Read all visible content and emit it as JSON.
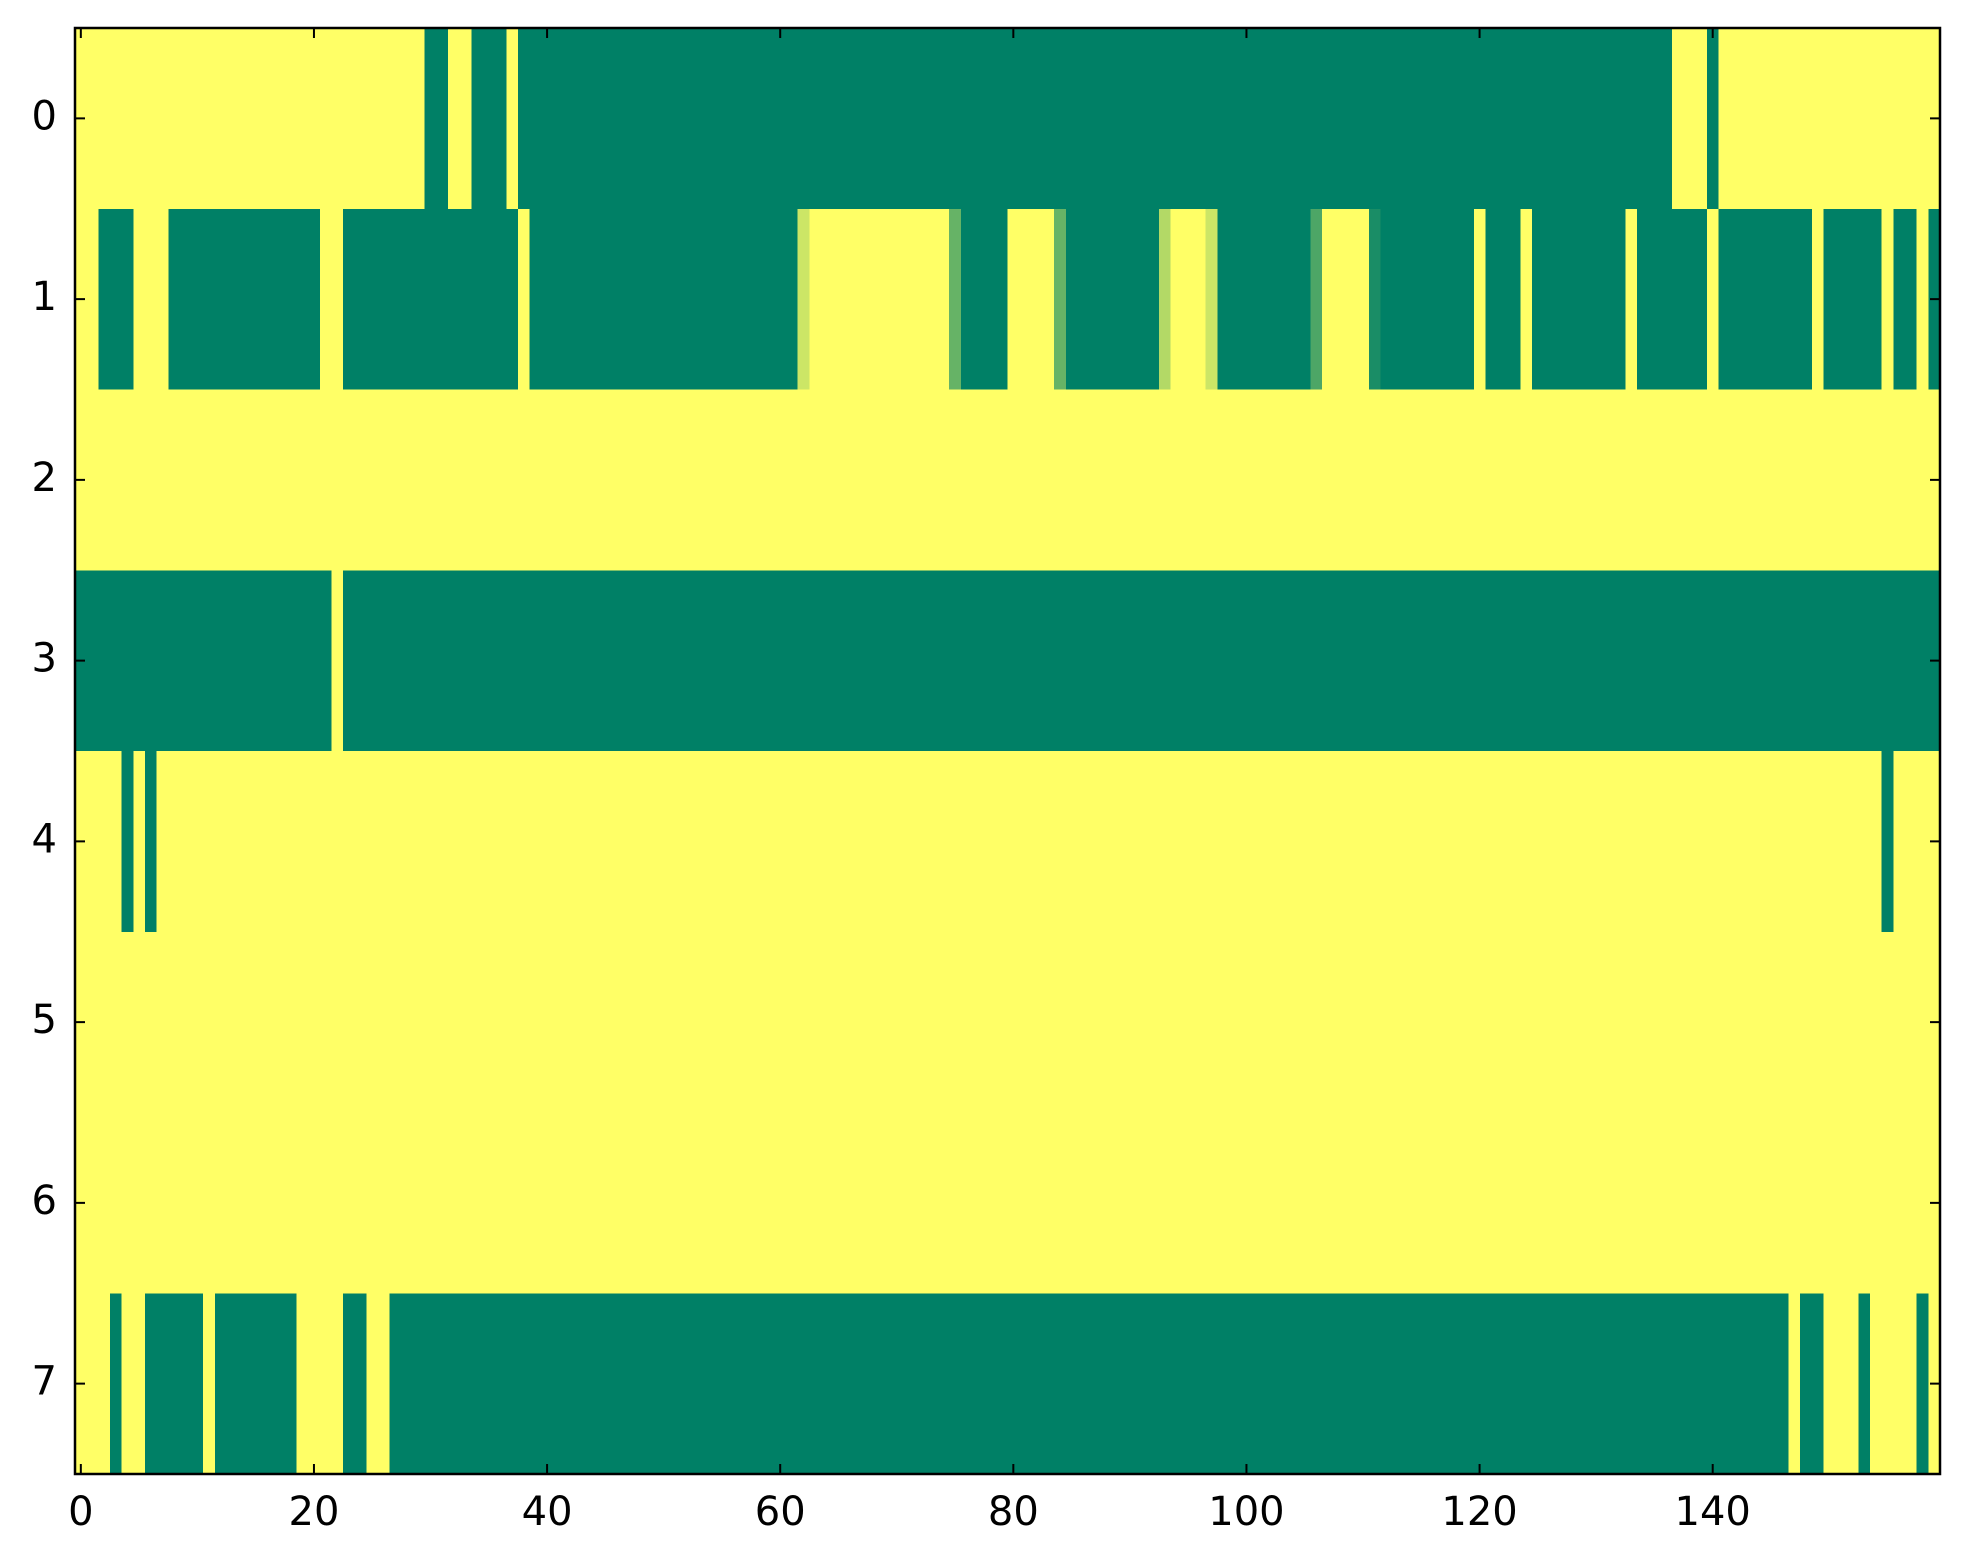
{
  "chart_data": {
    "type": "heatmap",
    "xlim": [
      -0.5,
      159.5
    ],
    "ylim": [
      7.5,
      -0.5
    ],
    "xticks": [
      0,
      20,
      40,
      60,
      80,
      100,
      120,
      140
    ],
    "yticks": [
      0,
      1,
      2,
      3,
      4,
      5,
      6,
      7
    ],
    "zlim": [
      0,
      1
    ],
    "colormap": {
      "low": "#008066",
      "high": "#ffff66"
    },
    "z": [
      [
        1,
        1,
        1,
        1,
        1,
        1,
        1,
        1,
        1,
        1,
        1,
        1,
        1,
        1,
        1,
        1,
        1,
        1,
        1,
        1,
        1,
        1,
        1,
        1,
        1,
        1,
        1,
        1,
        1,
        1,
        0,
        0,
        1,
        1,
        0,
        0,
        0,
        1,
        0,
        0,
        0,
        0,
        0,
        0,
        0,
        0,
        0,
        0,
        0,
        0,
        0,
        0,
        0,
        0,
        0,
        0,
        0,
        0,
        0,
        0,
        0,
        0,
        0,
        0,
        0,
        0,
        0,
        0,
        0,
        0,
        0,
        0,
        0,
        0,
        0,
        0,
        0,
        0,
        0,
        0,
        0,
        0,
        0,
        0,
        0,
        0,
        0,
        0,
        0,
        0,
        0,
        0,
        0,
        0,
        0,
        0,
        0,
        0,
        0,
        0,
        0,
        0,
        0,
        0,
        0,
        0,
        0,
        0,
        0,
        0,
        0,
        0,
        0,
        0,
        0,
        0,
        0,
        0,
        0,
        0,
        0,
        0,
        0,
        0,
        0,
        0,
        0,
        0,
        0,
        0,
        0,
        0,
        0,
        0,
        0,
        0,
        0,
        1,
        1,
        1,
        0,
        1,
        1,
        1,
        1,
        1,
        1,
        1,
        1,
        1,
        1,
        1,
        1,
        1,
        1,
        1,
        1,
        1,
        1,
        1
      ],
      [
        1,
        1,
        0,
        0,
        0,
        1,
        1,
        1,
        0,
        0,
        0,
        0,
        0,
        0,
        0,
        0,
        0,
        0,
        0,
        0,
        0,
        1,
        1,
        0,
        0,
        0,
        0,
        0,
        0,
        0,
        0,
        0,
        0,
        0,
        0,
        0,
        0,
        0,
        1,
        0,
        0,
        0,
        0,
        0,
        0,
        0,
        0,
        0,
        0,
        0,
        0,
        0,
        0,
        0,
        0,
        0,
        0,
        0,
        0,
        0,
        0,
        0,
        0.8,
        1,
        1,
        1,
        1,
        1,
        1,
        1,
        1,
        1,
        1,
        1,
        1,
        0.4,
        0,
        0,
        0,
        0,
        1,
        1,
        1,
        1,
        0.4,
        0,
        0,
        0,
        0,
        0,
        0,
        0,
        0,
        0.7,
        1,
        1,
        1,
        0.8,
        0,
        0,
        0,
        0,
        0,
        0,
        0,
        0,
        0.3,
        1,
        1,
        1,
        1,
        0.1,
        0,
        0,
        0,
        0,
        0,
        0,
        0,
        0,
        1,
        0,
        0,
        0,
        1,
        0,
        0,
        0,
        0,
        0,
        0,
        0,
        0,
        1,
        0,
        0,
        0,
        0,
        0,
        0,
        1,
        0,
        0,
        0,
        0,
        0,
        0,
        0,
        0,
        1,
        0,
        0,
        0,
        0,
        0,
        1,
        0,
        0,
        1,
        0
      ],
      [
        1,
        1,
        1,
        1,
        1,
        1,
        1,
        1,
        1,
        1,
        1,
        1,
        1,
        1,
        1,
        1,
        1,
        1,
        1,
        1,
        1,
        1,
        1,
        1,
        1,
        1,
        1,
        1,
        1,
        1,
        1,
        1,
        1,
        1,
        1,
        1,
        1,
        1,
        1,
        1,
        1,
        1,
        1,
        1,
        1,
        1,
        1,
        1,
        1,
        1,
        1,
        1,
        1,
        1,
        1,
        1,
        1,
        1,
        1,
        1,
        1,
        1,
        1,
        1,
        1,
        1,
        1,
        1,
        1,
        1,
        1,
        1,
        1,
        1,
        1,
        1,
        1,
        1,
        1,
        1,
        1,
        1,
        1,
        1,
        1,
        1,
        1,
        1,
        1,
        1,
        1,
        1,
        1,
        1,
        1,
        1,
        1,
        1,
        1,
        1,
        1,
        1,
        1,
        1,
        1,
        1,
        1,
        1,
        1,
        1,
        1,
        1,
        1,
        1,
        1,
        1,
        1,
        1,
        1,
        1,
        1,
        1,
        1,
        1,
        1,
        1,
        1,
        1,
        1,
        1,
        1,
        1,
        1,
        1,
        1,
        1,
        1,
        1,
        1,
        1,
        1,
        1,
        1,
        1,
        1,
        1,
        1,
        1,
        1,
        1,
        1,
        1,
        1,
        1,
        1,
        1,
        1,
        1,
        1,
        1
      ],
      [
        0,
        0,
        0,
        0,
        0,
        0,
        0,
        0,
        0,
        0,
        0,
        0,
        0,
        0,
        0,
        0,
        0,
        0,
        0,
        0,
        0,
        0,
        1,
        0,
        0,
        0,
        0,
        0,
        0,
        0,
        0,
        0,
        0,
        0,
        0,
        0,
        0,
        0,
        0,
        0,
        0,
        0,
        0,
        0,
        0,
        0,
        0,
        0,
        0,
        0,
        0,
        0,
        0,
        0,
        0,
        0,
        0,
        0,
        0,
        0,
        0,
        0,
        0,
        0,
        0,
        0,
        0,
        0,
        0,
        0,
        0,
        0,
        0,
        0,
        0,
        0,
        0,
        0,
        0,
        0,
        0,
        0,
        0,
        0,
        0,
        0,
        0,
        0,
        0,
        0,
        0,
        0,
        0,
        0,
        0,
        0,
        0,
        0,
        0,
        0,
        0,
        0,
        0,
        0,
        0,
        0,
        0,
        0,
        0,
        0,
        0,
        0,
        0,
        0,
        0,
        0,
        0,
        0,
        0,
        0,
        0,
        0,
        0,
        0,
        0,
        0,
        0,
        0,
        0,
        0,
        0,
        0,
        0,
        0,
        0,
        0,
        0,
        0,
        0,
        0,
        0,
        0,
        0,
        0,
        0,
        0,
        0,
        0,
        0,
        0,
        0,
        0,
        0,
        0,
        0,
        0,
        0,
        0,
        0,
        0
      ],
      [
        1,
        1,
        1,
        1,
        0,
        1,
        0,
        1,
        1,
        1,
        1,
        1,
        1,
        1,
        1,
        1,
        1,
        1,
        1,
        1,
        1,
        1,
        1,
        1,
        1,
        1,
        1,
        1,
        1,
        1,
        1,
        1,
        1,
        1,
        1,
        1,
        1,
        1,
        1,
        1,
        1,
        1,
        1,
        1,
        1,
        1,
        1,
        1,
        1,
        1,
        1,
        1,
        1,
        1,
        1,
        1,
        1,
        1,
        1,
        1,
        1,
        1,
        1,
        1,
        1,
        1,
        1,
        1,
        1,
        1,
        1,
        1,
        1,
        1,
        1,
        1,
        1,
        1,
        1,
        1,
        1,
        1,
        1,
        1,
        1,
        1,
        1,
        1,
        1,
        1,
        1,
        1,
        1,
        1,
        1,
        1,
        1,
        1,
        1,
        1,
        1,
        1,
        1,
        1,
        1,
        1,
        1,
        1,
        1,
        1,
        1,
        1,
        1,
        1,
        1,
        1,
        1,
        1,
        1,
        1,
        1,
        1,
        1,
        1,
        1,
        1,
        1,
        1,
        1,
        1,
        1,
        1,
        1,
        1,
        1,
        1,
        1,
        1,
        1,
        1,
        1,
        1,
        1,
        1,
        1,
        1,
        1,
        1,
        1,
        1,
        1,
        1,
        1,
        1,
        1,
        0,
        1,
        1,
        1,
        1
      ],
      [
        1,
        1,
        1,
        1,
        1,
        1,
        1,
        1,
        1,
        1,
        1,
        1,
        1,
        1,
        1,
        1,
        1,
        1,
        1,
        1,
        1,
        1,
        1,
        1,
        1,
        1,
        1,
        1,
        1,
        1,
        1,
        1,
        1,
        1,
        1,
        1,
        1,
        1,
        1,
        1,
        1,
        1,
        1,
        1,
        1,
        1,
        1,
        1,
        1,
        1,
        1,
        1,
        1,
        1,
        1,
        1,
        1,
        1,
        1,
        1,
        1,
        1,
        1,
        1,
        1,
        1,
        1,
        1,
        1,
        1,
        1,
        1,
        1,
        1,
        1,
        1,
        1,
        1,
        1,
        1,
        1,
        1,
        1,
        1,
        1,
        1,
        1,
        1,
        1,
        1,
        1,
        1,
        1,
        1,
        1,
        1,
        1,
        1,
        1,
        1,
        1,
        1,
        1,
        1,
        1,
        1,
        1,
        1,
        1,
        1,
        1,
        1,
        1,
        1,
        1,
        1,
        1,
        1,
        1,
        1,
        1,
        1,
        1,
        1,
        1,
        1,
        1,
        1,
        1,
        1,
        1,
        1,
        1,
        1,
        1,
        1,
        1,
        1,
        1,
        1,
        1,
        1,
        1,
        1,
        1,
        1,
        1,
        1,
        1,
        1,
        1,
        1,
        1,
        1,
        1,
        1,
        1,
        1,
        1,
        1
      ],
      [
        1,
        1,
        1,
        1,
        1,
        1,
        1,
        1,
        1,
        1,
        1,
        1,
        1,
        1,
        1,
        1,
        1,
        1,
        1,
        1,
        1,
        1,
        1,
        1,
        1,
        1,
        1,
        1,
        1,
        1,
        1,
        1,
        1,
        1,
        1,
        1,
        1,
        1,
        1,
        1,
        1,
        1,
        1,
        1,
        1,
        1,
        1,
        1,
        1,
        1,
        1,
        1,
        1,
        1,
        1,
        1,
        1,
        1,
        1,
        1,
        1,
        1,
        1,
        1,
        1,
        1,
        1,
        1,
        1,
        1,
        1,
        1,
        1,
        1,
        1,
        1,
        1,
        1,
        1,
        1,
        1,
        1,
        1,
        1,
        1,
        1,
        1,
        1,
        1,
        1,
        1,
        1,
        1,
        1,
        1,
        1,
        1,
        1,
        1,
        1,
        1,
        1,
        1,
        1,
        1,
        1,
        1,
        1,
        1,
        1,
        1,
        1,
        1,
        1,
        1,
        1,
        1,
        1,
        1,
        1,
        1,
        1,
        1,
        1,
        1,
        1,
        1,
        1,
        1,
        1,
        1,
        1,
        1,
        1,
        1,
        1,
        1,
        1,
        1,
        1,
        1,
        1,
        1,
        1,
        1,
        1,
        1,
        1,
        1,
        1,
        1,
        1,
        1,
        1,
        1,
        1,
        1,
        1,
        1,
        1
      ],
      [
        1,
        1,
        1,
        0,
        1,
        1,
        0,
        0,
        0,
        0,
        0,
        1,
        0,
        0,
        0,
        0,
        0,
        0,
        0,
        1,
        1,
        1,
        1,
        0,
        0,
        1,
        1,
        0,
        0,
        0,
        0,
        0,
        0,
        0,
        0,
        0,
        0,
        0,
        0,
        0,
        0,
        0,
        0,
        0,
        0,
        0,
        0,
        0,
        0,
        0,
        0,
        0,
        0,
        0,
        0,
        0,
        0,
        0,
        0,
        0,
        0,
        0,
        0,
        0,
        0,
        0,
        0,
        0,
        0,
        0,
        0,
        0,
        0,
        0,
        0,
        0,
        0,
        0,
        0,
        0,
        0,
        0,
        0,
        0,
        0,
        0,
        0,
        0,
        0,
        0,
        0,
        0,
        0,
        0,
        0,
        0,
        0,
        0,
        0,
        0,
        0,
        0,
        0,
        0,
        0,
        0,
        0,
        0,
        0,
        0,
        0,
        0,
        0,
        0,
        0,
        0,
        0,
        0,
        0,
        0,
        0,
        0,
        0,
        0,
        0,
        0,
        0,
        0,
        0,
        0,
        0,
        0,
        0,
        0,
        0,
        0,
        0,
        0,
        0,
        0,
        0,
        0,
        0,
        0,
        0,
        0,
        0,
        1,
        0,
        0,
        1,
        1,
        1,
        0,
        1,
        1,
        1,
        1,
        0,
        1
      ]
    ]
  }
}
